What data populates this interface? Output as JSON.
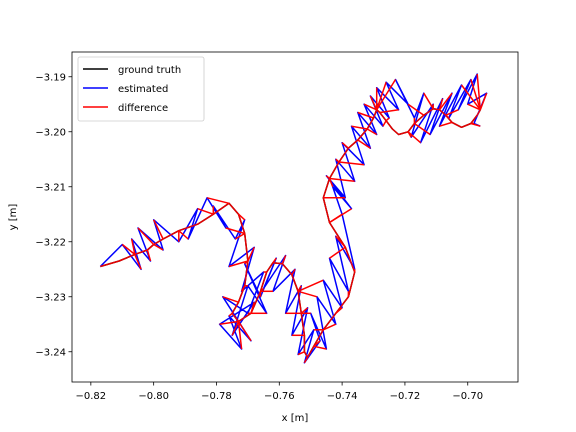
{
  "chart_data": {
    "type": "line",
    "title": "",
    "xlabel": "x [m]",
    "ylabel": "y [m]",
    "xlim": [
      -0.826,
      -0.684
    ],
    "ylim": [
      -3.2455,
      -3.1855
    ],
    "xticks": [
      -0.82,
      -0.8,
      -0.78,
      -0.76,
      -0.74,
      -0.72,
      -0.7
    ],
    "xtick_labels": [
      "−0.82",
      "−0.80",
      "−0.78",
      "−0.76",
      "−0.74",
      "−0.72",
      "−0.70"
    ],
    "yticks": [
      -3.19,
      -3.2,
      -3.21,
      -3.22,
      -3.23,
      -3.24
    ],
    "ytick_labels": [
      "−3.19",
      "−3.20",
      "−3.21",
      "−3.22",
      "−3.23",
      "−3.24"
    ],
    "grid": false,
    "legend": {
      "position": "top-left"
    },
    "series": [
      {
        "name": "ground truth",
        "color": "#000000",
        "x": [
          -0.817,
          -0.811,
          -0.806,
          -0.802,
          -0.8,
          -0.797,
          -0.792,
          -0.786,
          -0.781,
          -0.776,
          -0.773,
          -0.771,
          -0.77,
          -0.771,
          -0.773,
          -0.775,
          -0.773,
          -0.769,
          -0.766,
          -0.764,
          -0.762,
          -0.759,
          -0.756,
          -0.754,
          -0.753,
          -0.752,
          -0.752,
          -0.751,
          -0.749,
          -0.746,
          -0.742,
          -0.738,
          -0.736,
          -0.739,
          -0.744,
          -0.746,
          -0.744,
          -0.741,
          -0.738,
          -0.735,
          -0.732,
          -0.73,
          -0.729,
          -0.728,
          -0.726,
          -0.724,
          -0.722,
          -0.719,
          -0.717,
          -0.714,
          -0.711,
          -0.709,
          -0.707,
          -0.705,
          -0.702,
          -0.699,
          -0.697,
          -0.696
        ],
        "y": [
          -3.2245,
          -3.2235,
          -3.2223,
          -3.2215,
          -3.2205,
          -3.2195,
          -3.218,
          -3.2168,
          -3.215,
          -3.213,
          -3.215,
          -3.2185,
          -3.2235,
          -3.228,
          -3.231,
          -3.233,
          -3.2345,
          -3.233,
          -3.229,
          -3.2255,
          -3.2238,
          -3.224,
          -3.226,
          -3.229,
          -3.233,
          -3.237,
          -3.24,
          -3.241,
          -3.239,
          -3.236,
          -3.233,
          -3.23,
          -3.2255,
          -3.221,
          -3.2165,
          -3.212,
          -3.2085,
          -3.2055,
          -3.203,
          -3.2015,
          -3.1995,
          -3.1975,
          -3.196,
          -3.1965,
          -3.198,
          -3.1995,
          -3.2005,
          -3.2,
          -3.1985,
          -3.197,
          -3.1958,
          -3.196,
          -3.197,
          -3.1983,
          -3.1992,
          -3.1985,
          -3.197,
          -3.196
        ]
      },
      {
        "name": "estimated",
        "color": "#0000ff",
        "x": [
          -0.817,
          -0.81,
          -0.804,
          -0.807,
          -0.801,
          -0.805,
          -0.797,
          -0.8,
          -0.792,
          -0.786,
          -0.789,
          -0.783,
          -0.777,
          -0.781,
          -0.774,
          -0.771,
          -0.776,
          -0.768,
          -0.772,
          -0.765,
          -0.77,
          -0.778,
          -0.769,
          -0.776,
          -0.772,
          -0.779,
          -0.768,
          -0.775,
          -0.77,
          -0.764,
          -0.771,
          -0.766,
          -0.761,
          -0.765,
          -0.758,
          -0.762,
          -0.755,
          -0.758,
          -0.753,
          -0.756,
          -0.751,
          -0.754,
          -0.749,
          -0.752,
          -0.747,
          -0.75,
          -0.745,
          -0.748,
          -0.742,
          -0.746,
          -0.74,
          -0.744,
          -0.738,
          -0.742,
          -0.736,
          -0.74,
          -0.743,
          -0.737,
          -0.745,
          -0.739,
          -0.742,
          -0.736,
          -0.74,
          -0.733,
          -0.737,
          -0.731,
          -0.735,
          -0.729,
          -0.733,
          -0.727,
          -0.731,
          -0.725,
          -0.729,
          -0.722,
          -0.726,
          -0.719,
          -0.723,
          -0.717,
          -0.714,
          -0.718,
          -0.711,
          -0.715,
          -0.708,
          -0.712,
          -0.705,
          -0.709,
          -0.702,
          -0.706,
          -0.699,
          -0.703,
          -0.697,
          -0.7,
          -0.694,
          -0.698,
          -0.696
        ],
        "y": [
          -3.2245,
          -3.2205,
          -3.225,
          -3.2195,
          -3.2235,
          -3.2175,
          -3.2215,
          -3.216,
          -3.22,
          -3.214,
          -3.2195,
          -3.212,
          -3.2175,
          -3.2135,
          -3.2195,
          -3.216,
          -3.2245,
          -3.221,
          -3.229,
          -3.2255,
          -3.233,
          -3.23,
          -3.238,
          -3.2335,
          -3.2395,
          -3.235,
          -3.231,
          -3.237,
          -3.228,
          -3.233,
          -3.224,
          -3.23,
          -3.223,
          -3.2285,
          -3.2225,
          -3.229,
          -3.225,
          -3.233,
          -3.228,
          -3.237,
          -3.232,
          -3.2405,
          -3.236,
          -3.242,
          -3.238,
          -3.233,
          -3.2395,
          -3.23,
          -3.235,
          -3.227,
          -3.232,
          -3.223,
          -3.229,
          -3.219,
          -3.225,
          -3.215,
          -3.21,
          -3.214,
          -3.208,
          -3.212,
          -3.205,
          -3.209,
          -3.202,
          -3.206,
          -3.199,
          -3.203,
          -3.1965,
          -3.2005,
          -3.195,
          -3.199,
          -3.1935,
          -3.1975,
          -3.192,
          -3.196,
          -3.191,
          -3.195,
          -3.1905,
          -3.1975,
          -3.193,
          -3.201,
          -3.195,
          -3.202,
          -3.194,
          -3.2005,
          -3.193,
          -3.199,
          -3.1915,
          -3.1975,
          -3.1905,
          -3.196,
          -3.1895,
          -3.195,
          -3.193,
          -3.1985,
          -3.199
        ]
      },
      {
        "name": "difference",
        "color": "#ff0000",
        "x": [],
        "y": []
      }
    ]
  }
}
